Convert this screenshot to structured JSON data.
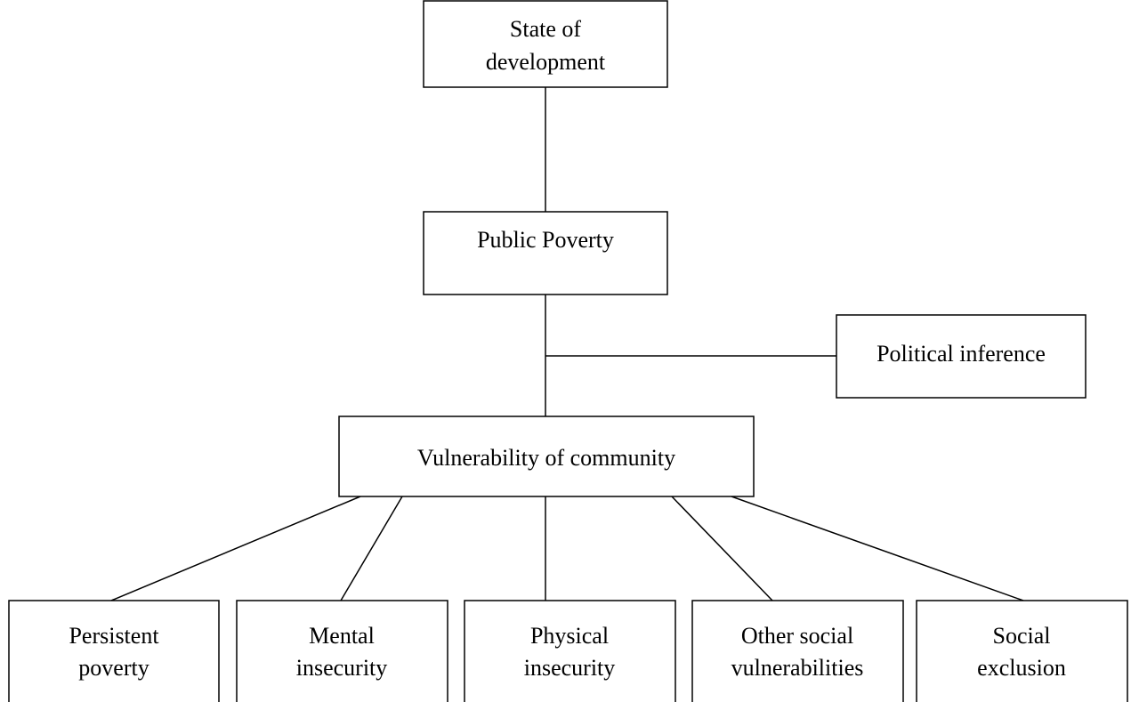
{
  "nodes": [
    {
      "label": [
        "State of",
        "development"
      ]
    },
    {
      "label": [
        "Public Poverty"
      ]
    },
    {
      "label": [
        "Political inference"
      ]
    },
    {
      "label": [
        "Vulnerability of community"
      ]
    },
    {
      "label": [
        "Persistent",
        "poverty"
      ]
    },
    {
      "label": [
        "Mental",
        "insecurity"
      ]
    },
    {
      "label": [
        "Physical",
        "insecurity"
      ]
    },
    {
      "label": [
        "Other social",
        "vulnerabilities"
      ]
    },
    {
      "label": [
        "Social",
        "exclusion"
      ]
    }
  ]
}
